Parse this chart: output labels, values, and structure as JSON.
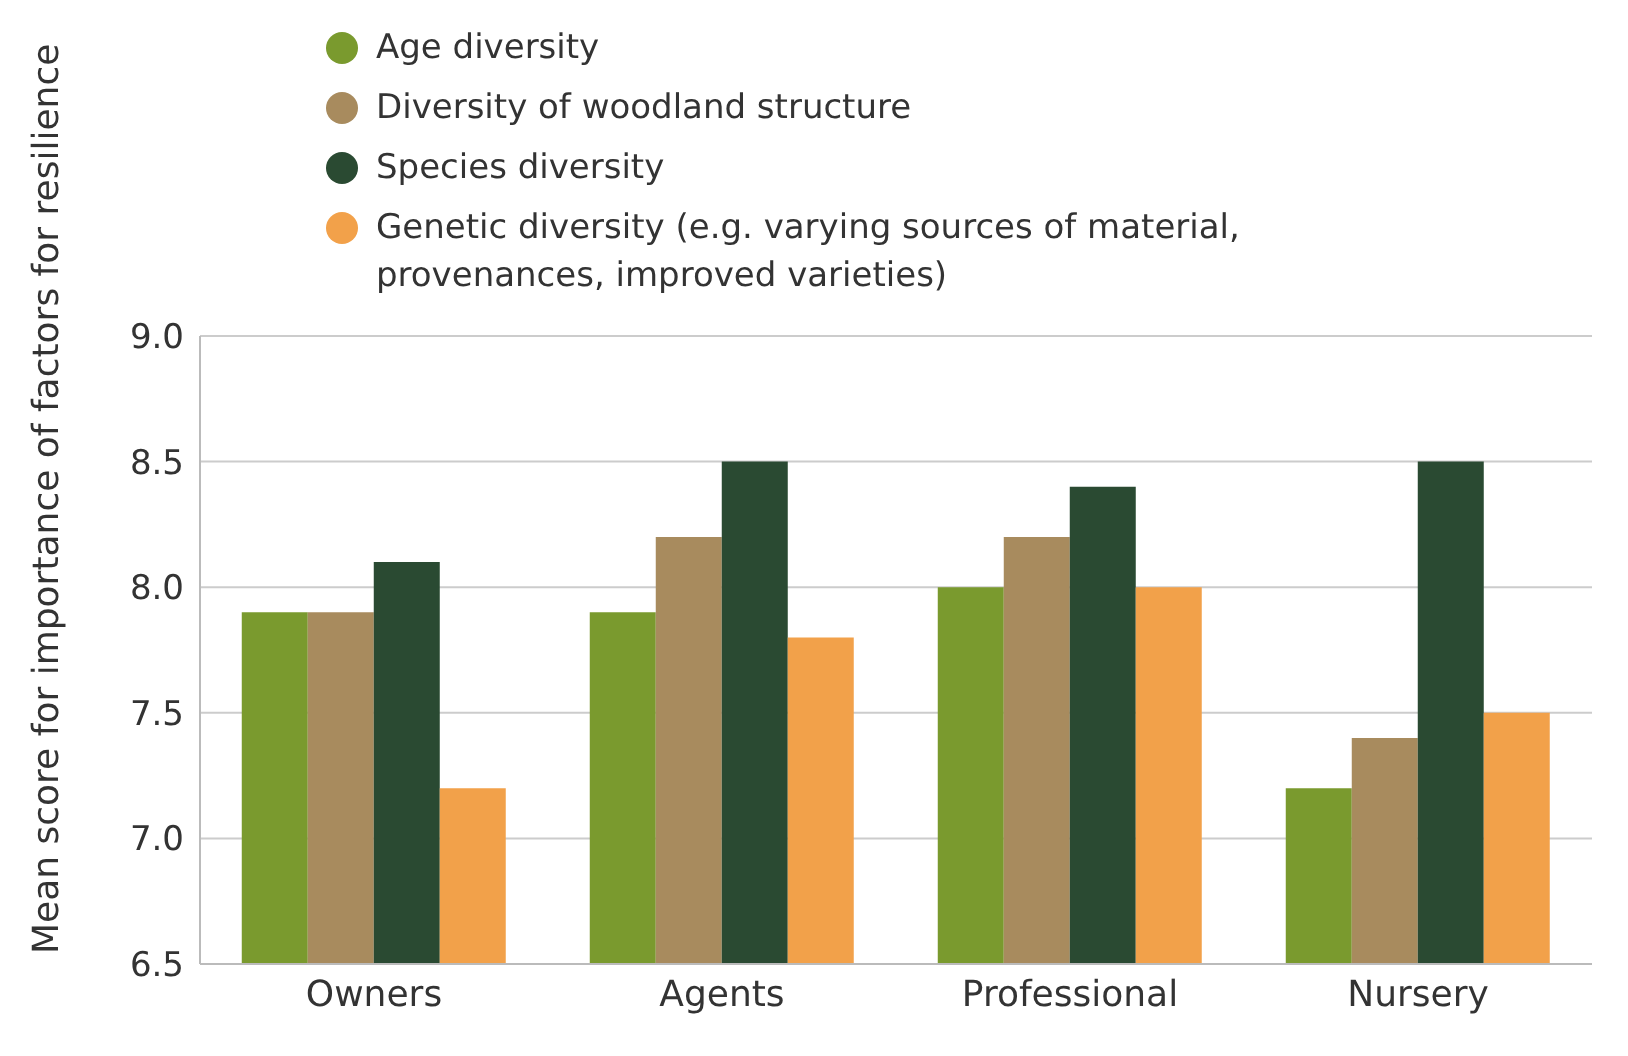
{
  "chart_data": {
    "type": "bar",
    "ylabel": "Mean score for importance of factors for resilience",
    "categories": [
      "Owners",
      "Agents",
      "Professional",
      "Nursery"
    ],
    "series": [
      {
        "name": "Age diversity",
        "color": "#7a9a2e",
        "values": [
          7.9,
          7.9,
          8.0,
          7.2
        ]
      },
      {
        "name": "Diversity of woodland structure",
        "color": "#a88b5e",
        "values": [
          7.9,
          8.2,
          8.2,
          7.4
        ]
      },
      {
        "name": "Species diversity",
        "color": "#2a4a32",
        "values": [
          8.1,
          8.5,
          8.4,
          8.5
        ]
      },
      {
        "name": "Genetic diversity (e.g. varying sources of material, provenances, improved varieties)",
        "color": "#f2a14a",
        "values": [
          7.2,
          7.8,
          8.0,
          7.5
        ]
      }
    ],
    "ylim": [
      6.5,
      9.0
    ],
    "yticks": [
      {
        "value": 6.5,
        "label": "6.5"
      },
      {
        "value": 7,
        "label": "7.0"
      },
      {
        "value": 7.5,
        "label": "7.5"
      },
      {
        "value": 8,
        "label": "8.0"
      },
      {
        "value": 8.5,
        "label": "8.5"
      },
      {
        "value": 9,
        "label": "9.0"
      }
    ],
    "grid": "y",
    "legend": "top left"
  }
}
